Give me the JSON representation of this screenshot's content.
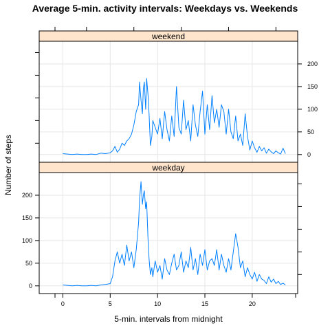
{
  "chart_data": {
    "type": "line",
    "title": "Average  5-min. activity intervals: Weekdays vs. Weekends",
    "xlabel": "5-min. intervals from midnight",
    "ylabel": "Number of steps",
    "xlim": [
      -2.5,
      24.8
    ],
    "ylim": [
      -17,
      250
    ],
    "xticks": [
      0,
      5,
      10,
      15,
      20
    ],
    "yticks": [
      0,
      50,
      100,
      150,
      200
    ],
    "grid": true,
    "panels": [
      {
        "name": "weekend",
        "x": [
          0,
          0.5,
          1,
          1.5,
          2,
          2.5,
          3,
          3.5,
          4,
          4.5,
          5,
          5.25,
          5.5,
          5.75,
          6,
          6.25,
          6.5,
          6.75,
          7,
          7.25,
          7.5,
          7.75,
          8,
          8.1,
          8.25,
          8.4,
          8.5,
          8.6,
          8.75,
          8.85,
          9,
          9.1,
          9.25,
          9.4,
          9.5,
          9.75,
          10,
          10.25,
          10.5,
          10.75,
          11,
          11.25,
          11.5,
          11.75,
          12,
          12.25,
          12.5,
          12.75,
          13,
          13.25,
          13.5,
          13.75,
          14,
          14.25,
          14.5,
          14.75,
          15,
          15.25,
          15.5,
          15.75,
          16,
          16.25,
          16.5,
          16.75,
          17,
          17.25,
          17.5,
          17.75,
          18,
          18.25,
          18.5,
          18.75,
          19,
          19.25,
          19.5,
          19.75,
          20,
          20.25,
          20.5,
          20.75,
          21,
          21.25,
          21.5,
          21.75,
          22,
          22.25,
          22.5,
          22.75,
          23,
          23.25,
          23.5
        ],
        "y": [
          2,
          1,
          0,
          1,
          0,
          0,
          1,
          0,
          3,
          2,
          4,
          8,
          18,
          5,
          12,
          25,
          20,
          30,
          35,
          45,
          65,
          95,
          110,
          160,
          120,
          90,
          145,
          160,
          100,
          168,
          130,
          90,
          20,
          40,
          75,
          60,
          45,
          80,
          35,
          95,
          55,
          30,
          85,
          40,
          150,
          60,
          45,
          120,
          55,
          75,
          30,
          110,
          65,
          40,
          95,
          140,
          45,
          110,
          55,
          130,
          70,
          100,
          60,
          110,
          95,
          45,
          100,
          50,
          35,
          85,
          30,
          45,
          20,
          90,
          40,
          10,
          30,
          15,
          5,
          18,
          8,
          15,
          3,
          12,
          6,
          2,
          8,
          4,
          1,
          14,
          2
        ],
        "color": "#0080ff"
      },
      {
        "name": "weekday",
        "x": [
          0,
          0.5,
          1,
          1.5,
          2,
          2.5,
          3,
          3.5,
          4,
          4.5,
          5,
          5.25,
          5.5,
          5.75,
          6,
          6.25,
          6.5,
          6.75,
          7,
          7.25,
          7.5,
          7.75,
          8,
          8.1,
          8.25,
          8.4,
          8.5,
          8.6,
          8.75,
          8.85,
          9,
          9.1,
          9.25,
          9.4,
          9.5,
          9.75,
          10,
          10.25,
          10.5,
          10.75,
          11,
          11.25,
          11.5,
          11.75,
          12,
          12.25,
          12.5,
          12.75,
          13,
          13.25,
          13.5,
          13.75,
          14,
          14.25,
          14.5,
          14.75,
          15,
          15.25,
          15.5,
          15.75,
          16,
          16.25,
          16.5,
          16.75,
          17,
          17.25,
          17.5,
          17.75,
          18,
          18.25,
          18.5,
          18.75,
          19,
          19.25,
          19.5,
          19.75,
          20,
          20.25,
          20.5,
          20.75,
          21,
          21.25,
          21.5,
          21.75,
          22,
          22.25,
          22.5,
          22.75,
          23,
          23.25,
          23.5
        ],
        "y": [
          2,
          1,
          0,
          1,
          0,
          0,
          1,
          0,
          2,
          3,
          5,
          20,
          55,
          75,
          50,
          70,
          45,
          90,
          55,
          75,
          40,
          80,
          140,
          190,
          230,
          180,
          200,
          210,
          170,
          185,
          100,
          60,
          25,
          40,
          20,
          55,
          30,
          45,
          15,
          60,
          35,
          25,
          50,
          70,
          35,
          45,
          75,
          30,
          55,
          40,
          85,
          35,
          60,
          25,
          70,
          45,
          80,
          35,
          55,
          60,
          45,
          80,
          35,
          70,
          45,
          30,
          60,
          35,
          75,
          115,
          85,
          40,
          55,
          20,
          40,
          25,
          15,
          30,
          10,
          25,
          15,
          12,
          5,
          20,
          8,
          15,
          5,
          10,
          3,
          6,
          2
        ],
        "color": "#0080ff"
      }
    ]
  }
}
